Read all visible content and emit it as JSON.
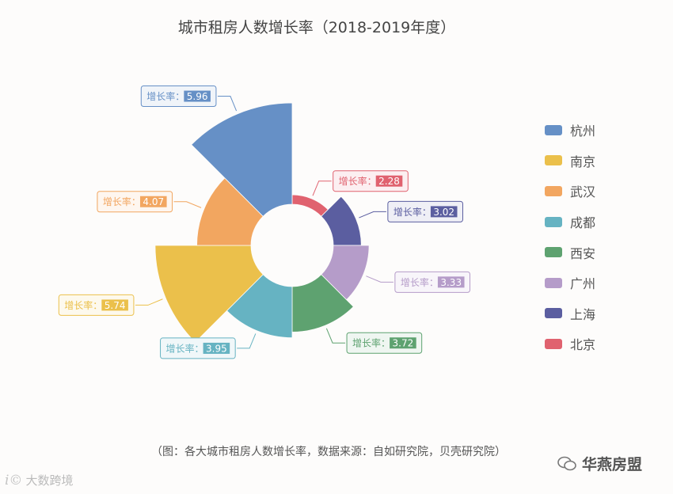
{
  "title": "城市租房人数增长率（2018-2019年度）",
  "caption": "（图：各大城市租房人数增长率，数据来源：自如研究院，贝壳研究院）",
  "watermark_left": "大数跨境",
  "watermark_right": "华燕房盟",
  "watermark_right_icon": "wechat-icon",
  "label_prefix": "增长率：",
  "chart_data": {
    "type": "pie",
    "variant": "rose",
    "title": "城市租房人数增长率（2018-2019年度）",
    "categories": [
      "北京",
      "上海",
      "广州",
      "西安",
      "成都",
      "南京",
      "武汉",
      "杭州"
    ],
    "values": [
      2.28,
      3.02,
      3.33,
      3.72,
      3.95,
      5.74,
      4.07,
      5.96
    ],
    "colors": [
      "#e0626f",
      "#5b5ea0",
      "#b59cc9",
      "#5ea270",
      "#66b3c2",
      "#ebc04b",
      "#f2a660",
      "#6690c6"
    ],
    "legend": {
      "position": "right",
      "items": [
        "杭州",
        "南京",
        "武汉",
        "成都",
        "西安",
        "广州",
        "上海",
        "北京"
      ],
      "colors": [
        "#6690c6",
        "#ebc04b",
        "#f2a660",
        "#66b3c2",
        "#5ea270",
        "#b59cc9",
        "#5b5ea0",
        "#e0626f"
      ]
    }
  }
}
